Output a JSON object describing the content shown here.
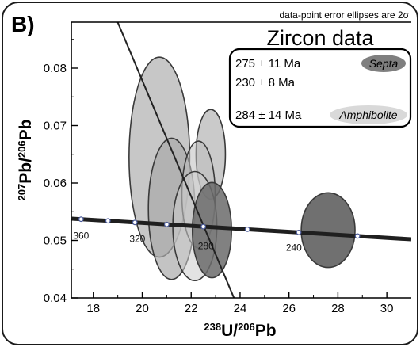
{
  "panel_label": "B)",
  "note": "data-point error ellipses are 2σ",
  "chart_data": {
    "type": "scatter",
    "title": "Zircon data",
    "xlabel": {
      "sup": "238",
      "a": "U/",
      "sup2": "206",
      "b": "Pb"
    },
    "ylabel": {
      "sup": "207",
      "a": "Pb/",
      "sup2": "206",
      "b": "Pb"
    },
    "xlim": [
      17.1,
      31.0
    ],
    "ylim": [
      0.04,
      0.088
    ],
    "x_ticks": [
      18,
      20,
      22,
      24,
      26,
      28,
      30
    ],
    "y_ticks": [
      0.04,
      0.05,
      0.06,
      0.07,
      0.08
    ],
    "x_tick_labels": [
      "18",
      "20",
      "22",
      "24",
      "26",
      "28",
      "30"
    ],
    "y_tick_labels": [
      "0.04",
      "0.05",
      "0.06",
      "0.07",
      "0.08"
    ],
    "legend": [
      {
        "text": "275 ± 11 Ma",
        "tag": "Septa",
        "tag_color": "#7f7f7f"
      },
      {
        "text": "230 ± 8 Ma",
        "tag": "",
        "tag_color": ""
      },
      {
        "text": "284 ± 14 Ma",
        "tag": "Amphibolite",
        "tag_color": "#d9d9d9"
      }
    ],
    "concordia": {
      "points": [
        {
          "x": 17.12,
          "y": 0.0538
        },
        {
          "x": 21.36,
          "y": 0.0527
        },
        {
          "x": 24.86,
          "y": 0.0518
        },
        {
          "x": 31.0,
          "y": 0.0502
        }
      ],
      "ticks": [
        17.5,
        18.6,
        19.7,
        21.0,
        22.5,
        24.3,
        26.4,
        28.8
      ],
      "labels": [
        {
          "text": "360",
          "x": 17.5,
          "y": 0.0503
        },
        {
          "text": "320",
          "x": 19.8,
          "y": 0.0497
        },
        {
          "text": "280",
          "x": 22.6,
          "y": 0.0485
        },
        {
          "text": "240",
          "x": 26.2,
          "y": 0.0482
        }
      ]
    },
    "discordia": {
      "x1": 18.55,
      "y1": 0.0925,
      "x2": 23.75,
      "y2": 0.04
    },
    "ellipses": [
      {
        "cx": 20.7,
        "cy": 0.0645,
        "rx": 1.24,
        "ry": 0.0174,
        "fill": "#c2c2c2",
        "opacity": 0.92
      },
      {
        "cx": 21.2,
        "cy": 0.0555,
        "rx": 0.95,
        "ry": 0.0123,
        "fill": "#a9a9a9",
        "opacity": 0.7
      },
      {
        "cx": 22.8,
        "cy": 0.065,
        "rx": 0.6,
        "ry": 0.0078,
        "fill": "#b3b3b3",
        "opacity": 0.7
      },
      {
        "cx": 22.3,
        "cy": 0.058,
        "rx": 0.68,
        "ry": 0.0093,
        "fill": "#bdbdbd",
        "opacity": 0.55
      },
      {
        "cx": 22.15,
        "cy": 0.0525,
        "rx": 0.9,
        "ry": 0.0095,
        "fill": "#cccccc",
        "opacity": 0.55
      },
      {
        "cx": 22.85,
        "cy": 0.0518,
        "rx": 0.8,
        "ry": 0.0083,
        "fill": "#6b6b6b",
        "opacity": 0.85
      },
      {
        "cx": 27.6,
        "cy": 0.0518,
        "rx": 1.1,
        "ry": 0.0065,
        "fill": "#707070",
        "opacity": 1.0
      }
    ]
  }
}
